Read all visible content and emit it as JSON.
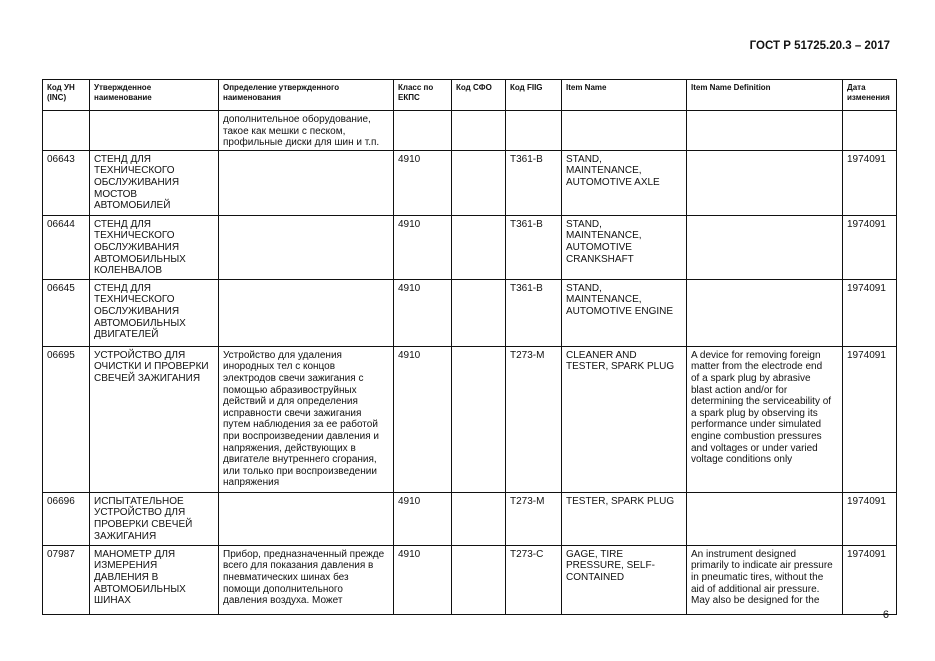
{
  "header": {
    "title": "ГОСТ Р 51725.20.3 – 2017"
  },
  "page_number": "6",
  "table": {
    "columns": [
      "Код УН\n(INC)",
      "Утвержденное\nнаименование",
      "Определение утвержденного\nнаименования",
      "Класс по\nЕКПС",
      "Код СФО",
      "Код FIIG",
      "Item Name",
      "Item Name Definition",
      "Дата\nизменения"
    ],
    "rows": [
      [
        "",
        "",
        "дополнительное оборудование,\nтакое как мешки с песком,\nпрофильные диски для шин и т.п.",
        "",
        "",
        "",
        "",
        "",
        ""
      ],
      [
        "06643",
        "СТЕНД ДЛЯ\nТЕХНИЧЕСКОГО\nОБСЛУЖИВАНИЯ\nМОСТОВ\nАВТОМОБИЛЕЙ",
        "",
        "4910",
        "",
        "T361-B",
        "STAND,\nMAINTENANCE,\nAUTOMOTIVE AXLE",
        "",
        "1974091"
      ],
      [
        "06644",
        "СТЕНД ДЛЯ\nТЕХНИЧЕСКОГО\nОБСЛУЖИВАНИЯ\nАВТОМОБИЛЬНЫХ\nКОЛЕНВАЛОВ",
        "",
        "4910",
        "",
        "T361-B",
        "STAND,\nMAINTENANCE,\nAUTOMOTIVE\nCRANKSHAFT",
        "",
        "1974091"
      ],
      [
        "06645",
        "СТЕНД ДЛЯ\nТЕХНИЧЕСКОГО\nОБСЛУЖИВАНИЯ\nАВТОМОБИЛЬНЫХ\nДВИГАТЕЛЕЙ",
        "",
        "4910",
        "",
        "T361-B",
        "STAND,\nMAINTENANCE,\nAUTOMOTIVE ENGINE",
        "",
        "1974091"
      ],
      [
        "06695",
        "УСТРОЙСТВО ДЛЯ\nОЧИСТКИ И ПРОВЕРКИ\nСВЕЧЕЙ ЗАЖИГАНИЯ",
        "Устройство для удаления\nинородных тел с концов\nэлектродов свечи зажигания с\nпомощью абразивоструйных\nдействий и для определения\nисправности свечи зажигания\nпутем наблюдения за ее работой\nпри воспроизведении давления и\nнапряжения, действующих в\nдвигателе внутреннего сгорания,\nили только при воспроизведении\nнапряжения",
        "4910",
        "",
        "T273-M",
        "CLEANER AND\nTESTER, SPARK PLUG",
        "A device for removing foreign\nmatter from the electrode end\nof a spark plug by abrasive\nblast action and/or for\ndetermining the serviceability of\na spark plug by observing its\nperformance under simulated\nengine combustion pressures\nand voltages or under varied\nvoltage conditions only",
        "1974091"
      ],
      [
        "06696",
        "ИСПЫТАТЕЛЬНОЕ\nУСТРОЙСТВО ДЛЯ\nПРОВЕРКИ СВЕЧЕЙ\nЗАЖИГАНИЯ",
        "",
        "4910",
        "",
        "T273-M",
        "TESTER, SPARK PLUG",
        "",
        "1974091"
      ],
      [
        "07987",
        "МАНОМЕТР ДЛЯ\nИЗМЕРЕНИЯ\nДАВЛЕНИЯ В\nАВТОМОБИЛЬНЫХ\nШИНАХ",
        "Прибор, предназначенный прежде\nвсего для показания давления в\nпневматических шинах без\nпомощи дополнительного\nдавления воздуха. Может",
        "4910",
        "",
        "T273-C",
        "GAGE, TIRE\nPRESSURE, SELF-\nCONTAINED",
        "An instrument designed\nprimarily to indicate air pressure\nin pneumatic tires, without the\naid of additional air pressure.\nMay also be designed for the",
        "1974091"
      ]
    ]
  }
}
